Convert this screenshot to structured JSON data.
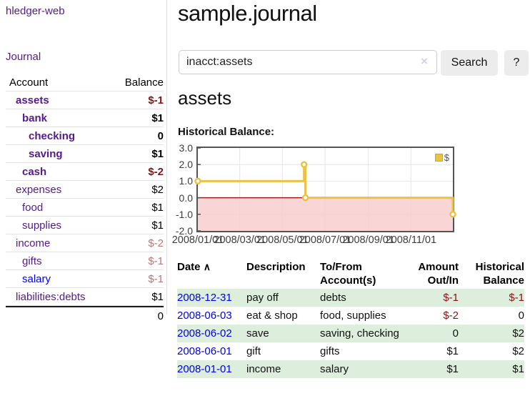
{
  "app_title": "hledger-web",
  "nav": {
    "journal": "Journal"
  },
  "accounts_panel": {
    "col_account": "Account",
    "col_balance": "Balance",
    "rows": [
      {
        "name": "assets",
        "balance": "$-1"
      },
      {
        "name": "bank",
        "balance": "$1"
      },
      {
        "name": "checking",
        "balance": "0"
      },
      {
        "name": "saving",
        "balance": "$1"
      },
      {
        "name": "cash",
        "balance": "$-2"
      },
      {
        "name": "expenses",
        "balance": "$2"
      },
      {
        "name": "food",
        "balance": "$1"
      },
      {
        "name": "supplies",
        "balance": "$1"
      },
      {
        "name": "income",
        "balance": "$-2"
      },
      {
        "name": "gifts",
        "balance": "$-1"
      },
      {
        "name": "salary",
        "balance": "$-1"
      },
      {
        "name": "liabilities:debts",
        "balance": "$1"
      }
    ],
    "total": "0"
  },
  "main": {
    "title": "sample.journal",
    "search": {
      "value": "inacct:assets",
      "clear": "×",
      "search_button": "Search",
      "help_button": "?"
    },
    "account_title": "assets",
    "chart_title": "Historical Balance:"
  },
  "chart_data": {
    "type": "line",
    "step": true,
    "title": "Historical Balance",
    "legend": "$",
    "legend_position": "top-right",
    "grid": true,
    "xlim": [
      "2008-01-01",
      "2008-12-31"
    ],
    "ylim": [
      -2,
      3
    ],
    "xticks": [
      "2008/01/01",
      "2008/03/01",
      "2008/05/01",
      "2008/07/01",
      "2008/09/01",
      "2008/11/01"
    ],
    "yticks": [
      "3.0",
      "2.0",
      "1.0",
      "0.0",
      "-1.0",
      "-2.0"
    ],
    "series": [
      {
        "name": "$",
        "color": "#EDC240",
        "points": [
          [
            "2008-01-01",
            1
          ],
          [
            "2008-06-01",
            2
          ],
          [
            "2008-06-03",
            0
          ],
          [
            "2008-12-31",
            -1
          ]
        ]
      }
    ]
  },
  "register": {
    "col_date": "Date",
    "sort_indicator": "∧",
    "col_description": "Description",
    "col_accounts": "To/From Account(s)",
    "col_amount": "Amount Out/In",
    "col_balance": "Historical Balance",
    "rows": [
      {
        "date": "2008-12-31",
        "description": "pay off",
        "accounts": "debts",
        "amount": "$-1",
        "balance": "$-1"
      },
      {
        "date": "2008-06-03",
        "description": "eat & shop",
        "accounts": "food, supplies",
        "amount": "$-2",
        "balance": "0"
      },
      {
        "date": "2008-06-02",
        "description": "save",
        "accounts": "saving, checking",
        "amount": "0",
        "balance": "$2"
      },
      {
        "date": "2008-06-01",
        "description": "gift",
        "accounts": "gifts",
        "amount": "$1",
        "balance": "$2"
      },
      {
        "date": "2008-01-01",
        "description": "income",
        "accounts": "salary",
        "amount": "$1",
        "balance": "$1"
      }
    ]
  },
  "colors": {
    "visited_link": "#551A8B",
    "unvisited_link": "#0000EE",
    "negative": "#871414",
    "negative_muted": "#bd7575",
    "row_stripe_green": "#ddeedd",
    "chart_series": "#EDC240",
    "chart_negative_fill": "#f9caca",
    "chart_zero_line": "#9a1c1c",
    "button_bg": "#ececec"
  }
}
